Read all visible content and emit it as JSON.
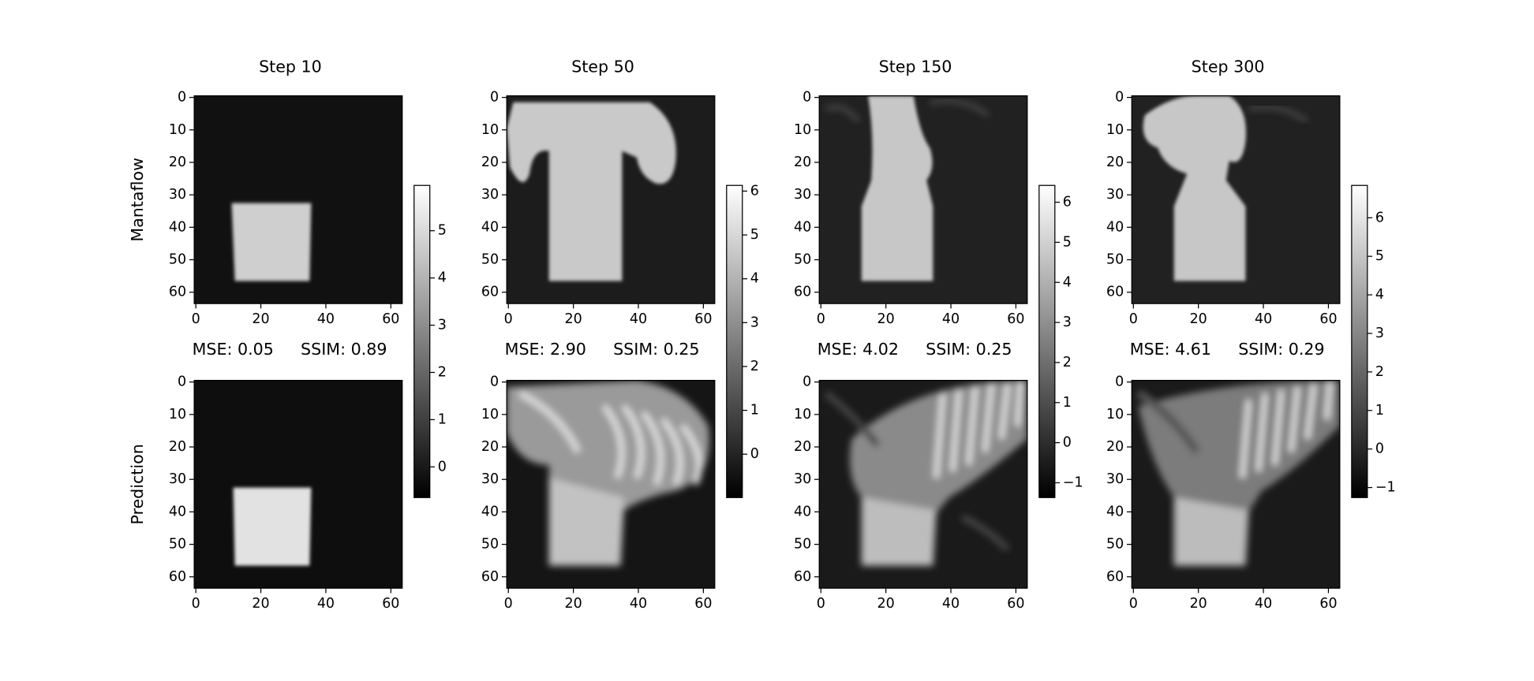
{
  "chart_data": {
    "type": "image_grid",
    "row_labels": [
      "Mantaflow",
      "Prediction"
    ],
    "xlim": [
      -0.5,
      63.5
    ],
    "ylim": [
      63.5,
      -0.5
    ],
    "xticks": [
      0,
      20,
      40,
      60
    ],
    "yticks": [
      0,
      10,
      20,
      30,
      40,
      50,
      60
    ],
    "columns": [
      {
        "title": "Step 10",
        "mse": "MSE: 0.05",
        "ssim": "SSIM: 0.89",
        "clim": [
          -0.65,
          5.96
        ],
        "cticks": [
          0,
          1,
          2,
          3,
          4,
          5
        ]
      },
      {
        "title": "Step 50",
        "mse": "MSE: 2.90",
        "ssim": "SSIM: 0.25",
        "clim": [
          -0.99,
          6.13
        ],
        "cticks": [
          0,
          1,
          2,
          3,
          4,
          5,
          6
        ]
      },
      {
        "title": "Step 150",
        "mse": "MSE: 4.02",
        "ssim": "SSIM: 0.25",
        "clim": [
          -1.37,
          6.42
        ],
        "cticks": [
          {
            "value": -1,
            "label": "−1"
          },
          0,
          1,
          2,
          3,
          4,
          5,
          6
        ]
      },
      {
        "title": "Step 300",
        "mse": "MSE: 4.61",
        "ssim": "SSIM: 0.29",
        "clim": [
          -1.26,
          6.84
        ],
        "cticks": [
          {
            "value": -1,
            "label": "−1"
          },
          0,
          1,
          2,
          3,
          4,
          5,
          6
        ]
      }
    ]
  }
}
